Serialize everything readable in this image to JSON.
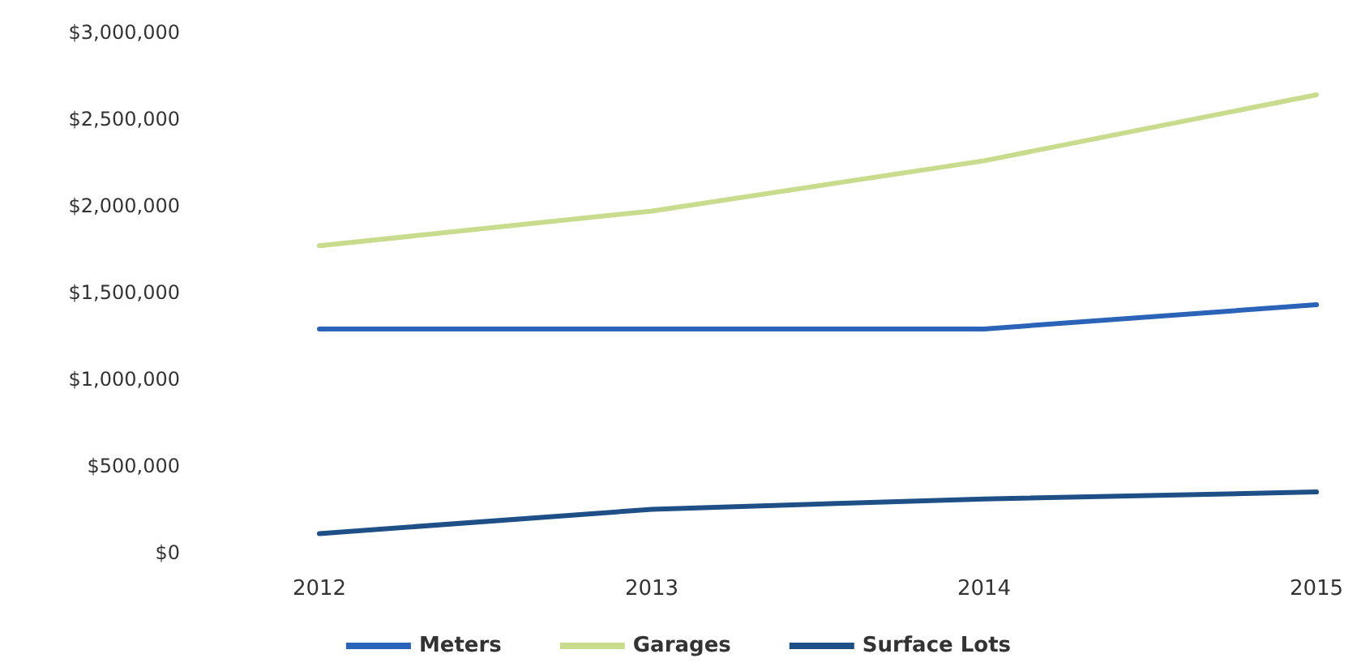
{
  "chart_data": {
    "type": "line",
    "categories": [
      "2012",
      "2013",
      "2014",
      "2015"
    ],
    "series": [
      {
        "name": "Meters",
        "color": "#2a63b8",
        "values": [
          1290000,
          1290000,
          1290000,
          1430000
        ]
      },
      {
        "name": "Garages",
        "color": "#c9dc8e",
        "values": [
          1770000,
          1970000,
          2260000,
          2640000
        ]
      },
      {
        "name": "Surface Lots",
        "color": "#1e4f86",
        "values": [
          110000,
          250000,
          310000,
          350000
        ]
      }
    ],
    "ylim": [
      0,
      3000000
    ],
    "yticks": [
      {
        "value": 0,
        "label": "$0"
      },
      {
        "value": 500000,
        "label": "$500,000"
      },
      {
        "value": 1000000,
        "label": "$1,000,000"
      },
      {
        "value": 1500000,
        "label": "$1,500,000"
      },
      {
        "value": 2000000,
        "label": "$2,000,000"
      },
      {
        "value": 2500000,
        "label": "$2,500,000"
      },
      {
        "value": 3000000,
        "label": "$3,000,000"
      }
    ],
    "grid": false,
    "legend": "bottom",
    "marker": "none",
    "line_style": "solid"
  }
}
